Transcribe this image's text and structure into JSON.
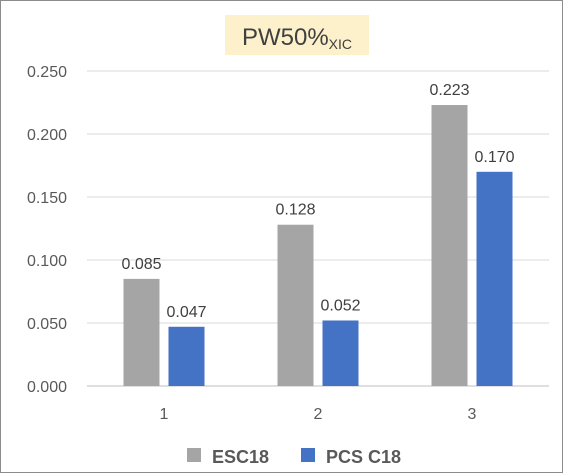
{
  "chart_data": {
    "type": "bar",
    "title": "PW50%",
    "title_subscript": "XIC",
    "title_background": "#fdf1cc",
    "categories": [
      "1",
      "2",
      "3"
    ],
    "series": [
      {
        "name": "ESC18",
        "values": [
          0.085,
          0.128,
          0.223
        ],
        "labels": [
          "0.085",
          "0.128",
          "0.223"
        ],
        "color": "#a5a5a5"
      },
      {
        "name": "PCS C18",
        "values": [
          0.047,
          0.052,
          0.17
        ],
        "labels": [
          "0.047",
          "0.052",
          "0.170"
        ],
        "color": "#4472c4"
      }
    ],
    "yticks": [
      0.0,
      0.05,
      0.1,
      0.15,
      0.2,
      0.25
    ],
    "ytick_labels": [
      "0.000",
      "0.050",
      "0.100",
      "0.150",
      "0.200",
      "0.250"
    ],
    "ylim": [
      0,
      0.25
    ],
    "grid": "horizontal",
    "legend_position": "bottom",
    "xlabel": "",
    "ylabel": ""
  }
}
